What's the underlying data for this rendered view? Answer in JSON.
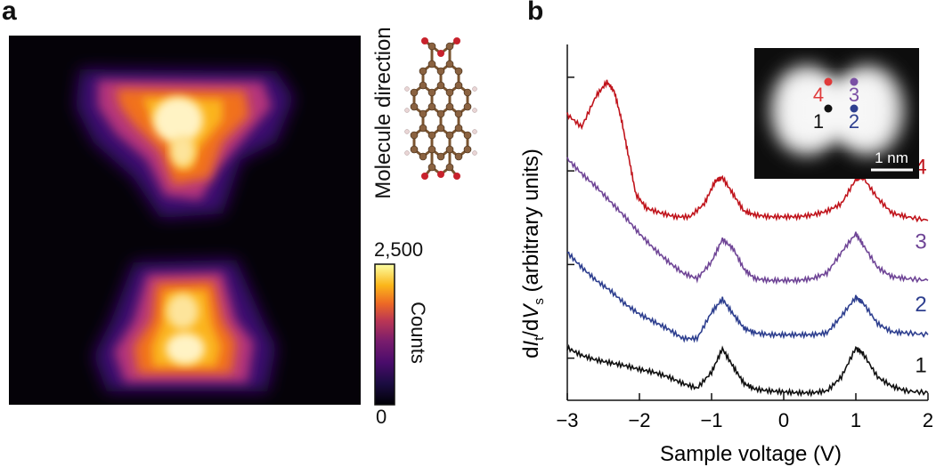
{
  "panel_a": {
    "label": "a",
    "molecule_direction_label": "Molecule direction",
    "colorbar": {
      "max_label": "2,500",
      "min_label": "0",
      "title": "Counts"
    }
  },
  "panel_b": {
    "label": "b",
    "inset": {
      "scale_label": "1 nm",
      "points": [
        "1",
        "2",
        "3",
        "4"
      ]
    }
  },
  "chart_data": [
    {
      "type": "heatmap",
      "title": "",
      "colorbar": {
        "min": 0,
        "max": 2500,
        "label": "Counts"
      },
      "colormap": "inferno",
      "description_lobes": [
        "upper lobe",
        "lower lobe"
      ]
    },
    {
      "type": "line",
      "xlabel": "Sample voltage (V)",
      "ylabel": "dIt/dVs (arbitrary units)",
      "xlim": [
        -3,
        2
      ],
      "xticks": [
        -3,
        -2,
        -1,
        0,
        1,
        2
      ],
      "x_tick_labels": [
        "−3",
        "−2",
        "−1",
        "0",
        "1",
        "2"
      ],
      "y_ticks": "unlabeled",
      "series": [
        {
          "name": "1",
          "color": "#111111",
          "x": [
            -3.0,
            -2.8,
            -2.6,
            -2.4,
            -2.2,
            -2.0,
            -1.8,
            -1.6,
            -1.4,
            -1.2,
            -1.0,
            -0.85,
            -0.7,
            -0.55,
            -0.4,
            -0.2,
            0.0,
            0.2,
            0.4,
            0.6,
            0.8,
            1.0,
            1.1,
            1.3,
            1.5,
            1.7,
            2.0
          ],
          "y": [
            0.56,
            0.48,
            0.43,
            0.4,
            0.37,
            0.33,
            0.3,
            0.25,
            0.18,
            0.13,
            0.3,
            0.55,
            0.36,
            0.18,
            0.12,
            0.1,
            0.09,
            0.08,
            0.08,
            0.1,
            0.25,
            0.56,
            0.5,
            0.25,
            0.15,
            0.1,
            0.08
          ]
        },
        {
          "name": "2",
          "color": "#2e3f8f",
          "x": [
            -3.0,
            -2.8,
            -2.6,
            -2.4,
            -2.2,
            -2.0,
            -1.8,
            -1.6,
            -1.4,
            -1.2,
            -1.0,
            -0.85,
            -0.7,
            -0.55,
            -0.4,
            -0.2,
            0.0,
            0.2,
            0.4,
            0.6,
            0.8,
            1.0,
            1.1,
            1.3,
            1.5,
            1.7,
            2.0
          ],
          "y": [
            1.58,
            1.42,
            1.28,
            1.17,
            1.03,
            0.92,
            0.84,
            0.76,
            0.66,
            0.66,
            0.94,
            1.08,
            0.92,
            0.77,
            0.72,
            0.7,
            0.7,
            0.7,
            0.7,
            0.72,
            0.9,
            1.1,
            1.04,
            0.82,
            0.73,
            0.72,
            0.7
          ]
        },
        {
          "name": "3",
          "color": "#6f4596",
          "x": [
            -3.0,
            -2.8,
            -2.6,
            -2.4,
            -2.2,
            -2.0,
            -1.8,
            -1.6,
            -1.4,
            -1.2,
            -1.0,
            -0.85,
            -0.7,
            -0.55,
            -0.4,
            -0.2,
            0.0,
            0.2,
            0.4,
            0.6,
            0.8,
            1.0,
            1.1,
            1.3,
            1.5,
            1.7,
            2.0
          ],
          "y": [
            2.58,
            2.42,
            2.28,
            2.12,
            1.96,
            1.78,
            1.62,
            1.48,
            1.36,
            1.3,
            1.48,
            1.72,
            1.62,
            1.4,
            1.3,
            1.28,
            1.28,
            1.28,
            1.3,
            1.36,
            1.58,
            1.78,
            1.66,
            1.42,
            1.32,
            1.3,
            1.28
          ]
        },
        {
          "name": "4",
          "color": "#c0141c",
          "x": [
            -3.0,
            -2.8,
            -2.6,
            -2.45,
            -2.35,
            -2.25,
            -2.15,
            -2.05,
            -1.9,
            -1.7,
            -1.5,
            -1.3,
            -1.1,
            -0.95,
            -0.85,
            -0.7,
            -0.55,
            -0.4,
            -0.2,
            0.0,
            0.2,
            0.4,
            0.6,
            0.8,
            1.0,
            1.1,
            1.3,
            1.5,
            1.7,
            2.0
          ],
          "y": [
            3.05,
            2.92,
            3.25,
            3.4,
            3.3,
            3.0,
            2.6,
            2.2,
            2.05,
            2.0,
            1.96,
            1.96,
            2.1,
            2.34,
            2.38,
            2.2,
            2.02,
            1.98,
            1.96,
            1.96,
            1.96,
            1.98,
            2.02,
            2.1,
            2.36,
            2.38,
            2.16,
            2.0,
            1.96,
            1.92
          ]
        }
      ]
    }
  ]
}
